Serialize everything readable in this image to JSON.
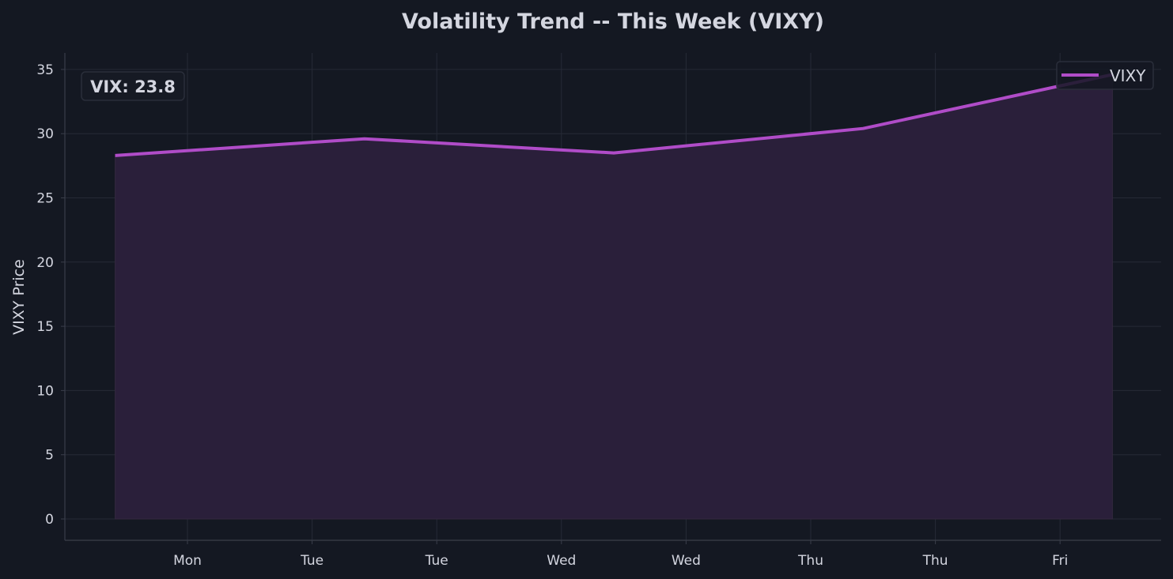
{
  "chart_data": {
    "type": "area",
    "title": "Volatility Trend -- This Week (VIXY)",
    "xlabel": "",
    "ylabel": "VIXY Price",
    "ylim": [
      -1.6,
      36.3
    ],
    "y_ticks": [
      0,
      5,
      10,
      15,
      20,
      25,
      30,
      35
    ],
    "x_tick_labels": [
      "Mon",
      "Tue",
      "Tue",
      "Wed",
      "Wed",
      "Thu",
      "Thu",
      "Fri"
    ],
    "grid": true,
    "legend_position": "top-right",
    "series": [
      {
        "name": "VIXY",
        "color": "#b04cc8",
        "fill": "#2a1f3a",
        "values": [
          28.3,
          29.6,
          28.5,
          30.4,
          34.6
        ]
      }
    ],
    "annotation": "VIX: 23.8"
  },
  "colors": {
    "background": "#141822",
    "grid": "#262a36",
    "text": "#d4d6e0",
    "axis": "#3a3e4a"
  }
}
